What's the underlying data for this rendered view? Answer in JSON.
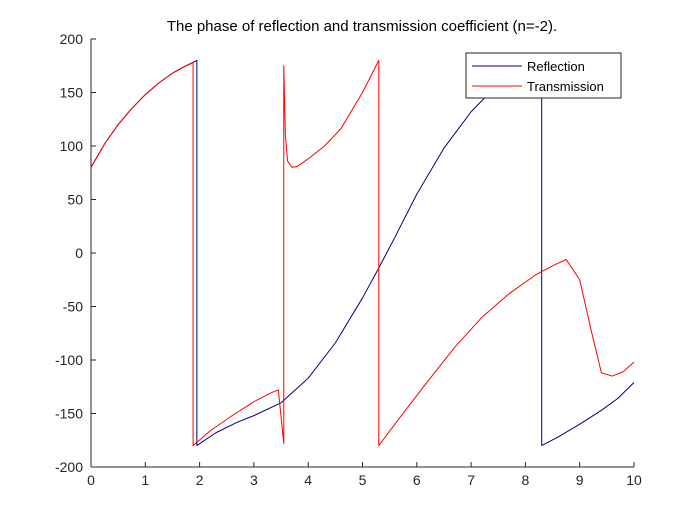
{
  "chart_data": {
    "type": "line",
    "title": "The phase of reflection and transmission coefficient (n=-2).",
    "xlabel": "",
    "ylabel": "",
    "xlim": [
      0,
      10
    ],
    "ylim": [
      -200,
      200
    ],
    "xticks": [
      0,
      1,
      2,
      3,
      4,
      5,
      6,
      7,
      8,
      9,
      10
    ],
    "yticks": [
      -200,
      -150,
      -100,
      -50,
      0,
      50,
      100,
      150,
      200
    ],
    "grid": false,
    "legend_position": "top-right",
    "series": [
      {
        "name": "Reflection",
        "color": "#00007f",
        "segments": [
          {
            "x": [
              0,
              0.25,
              0.5,
              0.75,
              1.0,
              1.25,
              1.5,
              1.75,
              1.95
            ],
            "y": [
              80,
              102,
              120,
              135,
              148,
              159,
              168,
              175,
              180
            ]
          },
          {
            "x": [
              1.95,
              2.3,
              2.7,
              3.0,
              3.5,
              4.0,
              4.5,
              5.0,
              5.3,
              5.6,
              6.0,
              6.5,
              7.0,
              7.5,
              7.9,
              8.3
            ],
            "y": [
              -180,
              -168,
              -158,
              -152,
              -140,
              -117,
              -84,
              -42,
              -14,
              15,
              55,
              98,
              132,
              158,
              172,
              180
            ]
          },
          {
            "x": [
              8.3,
              8.6,
              9.0,
              9.4,
              9.7,
              10.0
            ],
            "y": [
              -180,
              -172,
              -160,
              -147,
              -136,
              -121
            ]
          }
        ]
      },
      {
        "name": "Transmission",
        "color": "#ff0000",
        "segments": [
          {
            "x": [
              0,
              0.25,
              0.5,
              0.75,
              1.0,
              1.25,
              1.5,
              1.75,
              1.88
            ],
            "y": [
              80,
              102,
              120,
              135,
              148,
              159,
              168,
              175,
              178
            ]
          },
          {
            "x": [
              1.88,
              2.2,
              2.6,
              3.0,
              3.3,
              3.45,
              3.55
            ],
            "y": [
              -180,
              -166,
              -152,
              -139,
              -131,
              -128,
              -178
            ]
          },
          {
            "x": [
              3.55,
              3.58,
              3.62,
              3.7,
              3.8,
              4.0,
              4.3,
              4.6,
              5.0,
              5.3
            ],
            "y": [
              175,
              110,
              86,
              80,
              81,
              88,
              100,
              116,
              150,
              180
            ]
          },
          {
            "x": [
              5.3,
              5.7,
              6.2,
              6.7,
              7.2,
              7.7,
              8.2,
              8.5,
              8.75,
              9.0,
              9.2,
              9.4,
              9.6,
              9.8,
              10.0
            ],
            "y": [
              -180,
              -153,
              -120,
              -88,
              -60,
              -38,
              -20,
              -12,
              -6,
              -25,
              -70,
              -112,
              -115,
              -111,
              -102
            ]
          }
        ]
      }
    ]
  }
}
